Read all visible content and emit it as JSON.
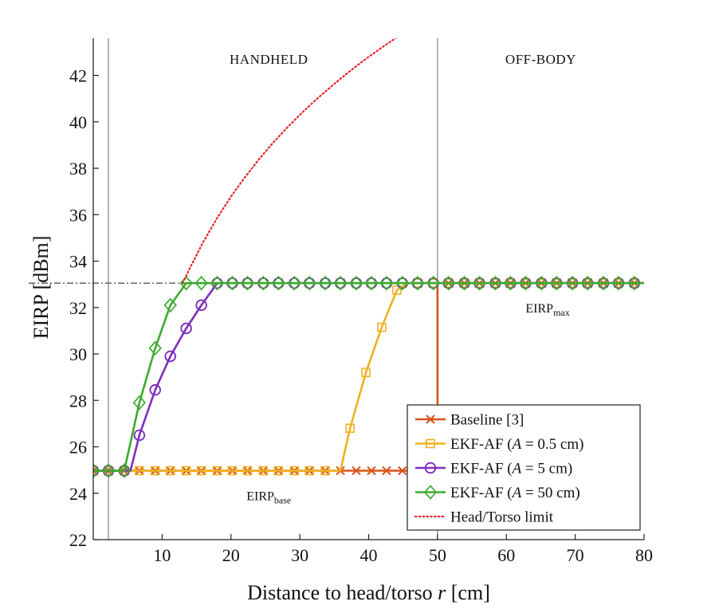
{
  "chart_data": {
    "type": "line",
    "xlabel": "Distance to head/torso r [cm]",
    "ylabel": "EIRP [dBm]",
    "xlim": [
      0,
      80
    ],
    "ylim": [
      22,
      43.6
    ],
    "xticks": [
      10,
      20,
      30,
      40,
      50,
      60,
      70,
      80
    ],
    "yticks": [
      22,
      24,
      26,
      28,
      30,
      32,
      34,
      36,
      38,
      40,
      42
    ],
    "grid": false,
    "vlines": [
      2.2,
      50
    ],
    "regions": [
      {
        "label": "HANDHELD",
        "x": 25.5,
        "y": 42.7
      },
      {
        "label": "OFF-BODY",
        "x": 65,
        "y": 42.7
      }
    ],
    "reference_line": {
      "y": 33.05,
      "style": "dash-dot",
      "color": "#555555"
    },
    "annotations": [
      {
        "base": "EIRP",
        "sub": "max",
        "x": 66,
        "y": 32.0
      },
      {
        "base": "EIRP",
        "sub": "base",
        "x": 25.5,
        "y": 23.9
      }
    ],
    "series": [
      {
        "name": "Baseline [3]",
        "color": "#d9531a",
        "marker": "x",
        "x": [
          0,
          2.2,
          4.5,
          6.7,
          9,
          11.2,
          13.5,
          15.7,
          18,
          20.2,
          22.4,
          24.7,
          26.9,
          29.2,
          31.4,
          33.7,
          35.9,
          38.2,
          40.4,
          42.6,
          44.9,
          47.1,
          49.4,
          50,
          50,
          51.6,
          53.9,
          56.1,
          58.4,
          60.6,
          62.8,
          65.1,
          67.3,
          69.6,
          71.8,
          74.1,
          76.3,
          78.6,
          80
        ],
        "y": [
          24.97,
          24.97,
          24.97,
          24.97,
          24.97,
          24.97,
          24.97,
          24.97,
          24.97,
          24.97,
          24.97,
          24.97,
          24.97,
          24.97,
          24.97,
          24.97,
          24.97,
          24.97,
          24.97,
          24.97,
          24.97,
          24.97,
          24.97,
          24.97,
          33.05,
          33.05,
          33.05,
          33.05,
          33.05,
          33.05,
          33.05,
          33.05,
          33.05,
          33.05,
          33.05,
          33.05,
          33.05,
          33.05,
          33.05
        ],
        "markers": [
          0,
          1,
          2,
          3,
          4,
          5,
          6,
          7,
          8,
          9,
          10,
          11,
          12,
          13,
          14,
          15,
          16,
          17,
          18,
          19,
          20,
          21,
          22,
          25,
          26,
          27,
          28,
          29,
          30,
          31,
          32,
          33,
          34,
          35,
          36,
          37
        ]
      },
      {
        "name": "EKF-AF (A = 0.5 cm)",
        "color": "#edb120",
        "marker": "square",
        "x": [
          0,
          2.2,
          4.5,
          6.7,
          9,
          11.2,
          13.5,
          15.7,
          18,
          20.2,
          22.4,
          24.7,
          26.9,
          29.2,
          31.4,
          33.7,
          35.9,
          37.3,
          39.6,
          41.9,
          44.1,
          45.6,
          47.1,
          49.4,
          51.6,
          53.9,
          56.1,
          58.4,
          60.6,
          62.8,
          65.1,
          67.3,
          69.6,
          71.8,
          74.1,
          76.3,
          78.6,
          80
        ],
        "y": [
          24.97,
          24.97,
          24.97,
          24.97,
          24.97,
          24.97,
          24.97,
          24.97,
          24.97,
          24.97,
          24.97,
          24.97,
          24.97,
          24.97,
          24.97,
          24.97,
          24.97,
          26.8,
          29.2,
          31.15,
          32.75,
          33.05,
          33.05,
          33.05,
          33.05,
          33.05,
          33.05,
          33.05,
          33.05,
          33.05,
          33.05,
          33.05,
          33.05,
          33.05,
          33.05,
          33.05,
          33.05,
          33.05
        ],
        "markers": [
          0,
          1,
          2,
          3,
          4,
          5,
          6,
          7,
          8,
          9,
          10,
          11,
          12,
          13,
          14,
          15,
          17,
          18,
          19,
          20,
          22,
          23,
          24,
          25,
          26,
          27,
          28,
          29,
          30,
          31,
          32,
          33,
          34,
          35,
          36
        ]
      },
      {
        "name": "EKF-AF (A = 5 cm)",
        "color": "#7e2fbd",
        "marker": "circle",
        "x": [
          0,
          2.2,
          4.5,
          5.4,
          6.7,
          9,
          11.2,
          13.5,
          15.7,
          18,
          20.2,
          22.4,
          24.7,
          26.9,
          29.2,
          31.4,
          33.7,
          35.9,
          38.2,
          40.4,
          42.6,
          44.9,
          47.1,
          49.4,
          51.6,
          53.9,
          56.1,
          58.4,
          60.6,
          62.8,
          65.1,
          67.3,
          69.6,
          71.8,
          74.1,
          76.3,
          78.6,
          80
        ],
        "y": [
          24.97,
          24.97,
          24.97,
          24.97,
          26.5,
          28.45,
          29.9,
          31.1,
          32.1,
          33.05,
          33.05,
          33.05,
          33.05,
          33.05,
          33.05,
          33.05,
          33.05,
          33.05,
          33.05,
          33.05,
          33.05,
          33.05,
          33.05,
          33.05,
          33.05,
          33.05,
          33.05,
          33.05,
          33.05,
          33.05,
          33.05,
          33.05,
          33.05,
          33.05,
          33.05,
          33.05,
          33.05,
          33.05
        ],
        "markers": [
          0,
          1,
          2,
          4,
          5,
          6,
          7,
          8,
          9,
          10,
          11,
          12,
          13,
          14,
          15,
          16,
          17,
          18,
          19,
          20,
          21,
          22,
          23,
          24,
          25,
          26,
          27,
          28,
          29,
          30,
          31,
          32,
          33,
          34,
          35,
          36
        ]
      },
      {
        "name": "EKF-AF (A = 50 cm)",
        "color": "#3daa2e",
        "marker": "diamond",
        "x": [
          0,
          2.2,
          4.5,
          6.7,
          9,
          11.2,
          13.5,
          15.7,
          18,
          20.2,
          22.4,
          24.7,
          26.9,
          29.2,
          31.4,
          33.7,
          35.9,
          38.2,
          40.4,
          42.6,
          44.9,
          47.1,
          49.4,
          51.6,
          53.9,
          56.1,
          58.4,
          60.6,
          62.8,
          65.1,
          67.3,
          69.6,
          71.8,
          74.1,
          76.3,
          78.6,
          80
        ],
        "y": [
          24.97,
          24.97,
          24.97,
          27.9,
          30.25,
          32.1,
          33.05,
          33.05,
          33.05,
          33.05,
          33.05,
          33.05,
          33.05,
          33.05,
          33.05,
          33.05,
          33.05,
          33.05,
          33.05,
          33.05,
          33.05,
          33.05,
          33.05,
          33.05,
          33.05,
          33.05,
          33.05,
          33.05,
          33.05,
          33.05,
          33.05,
          33.05,
          33.05,
          33.05,
          33.05,
          33.05,
          33.05
        ],
        "markers": [
          0,
          1,
          2,
          3,
          4,
          5,
          6,
          7,
          8,
          9,
          10,
          11,
          12,
          13,
          14,
          15,
          16,
          17,
          18,
          19,
          20,
          21,
          22,
          23,
          24,
          25,
          26,
          27,
          28,
          29,
          30,
          31,
          32,
          33,
          34,
          35
        ]
      },
      {
        "name": "Head/Torso limit",
        "color": "#e3262a",
        "marker": "none",
        "style": "dotted",
        "x": [
          13,
          14,
          16,
          18,
          20,
          22,
          24,
          26,
          28,
          30,
          32,
          34,
          36,
          38,
          40,
          42,
          44
        ],
        "y": [
          33.05,
          33.68,
          34.84,
          35.86,
          36.78,
          37.6,
          38.36,
          39.06,
          39.7,
          40.3,
          40.86,
          41.38,
          41.88,
          42.35,
          42.8,
          43.22,
          43.62
        ]
      }
    ],
    "legend": {
      "position": "bottom-right",
      "entries": [
        {
          "pre": "Baseline [3]",
          "var": "",
          "post": ""
        },
        {
          "pre": "EKF-AF (",
          "var": "A",
          "post": " = 0.5 cm)"
        },
        {
          "pre": "EKF-AF (",
          "var": "A",
          "post": " = 5 cm)"
        },
        {
          "pre": "EKF-AF (",
          "var": "A",
          "post": " = 50 cm)"
        },
        {
          "pre": "Head/Torso limit",
          "var": "",
          "post": ""
        }
      ]
    }
  }
}
